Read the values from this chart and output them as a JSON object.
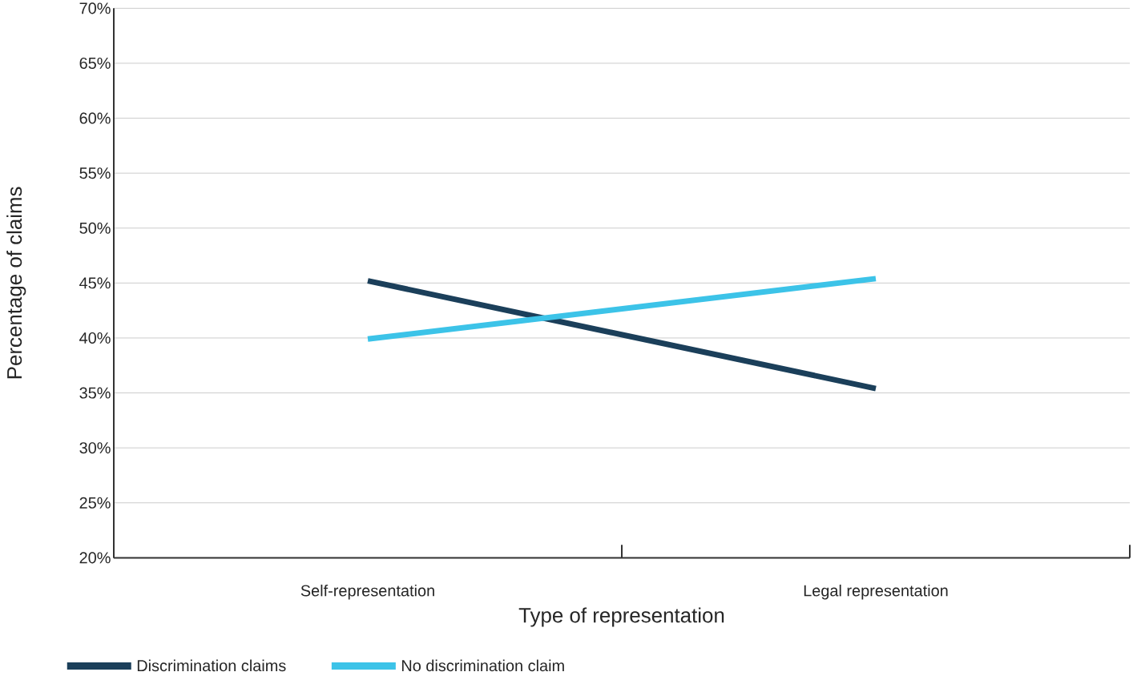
{
  "chart_data": {
    "type": "line",
    "xlabel": "Type of representation",
    "ylabel": "Percentage of claims",
    "categories": [
      "Self-representation",
      "Legal representation"
    ],
    "series": [
      {
        "name": "Discrimination claims",
        "color": "#1b3f5a",
        "values": [
          45.2,
          35.4
        ]
      },
      {
        "name": "No discrimination claim",
        "color": "#3cc3e8",
        "values": [
          39.9,
          45.4
        ]
      }
    ],
    "ylim": [
      20,
      70
    ],
    "yticks": [
      {
        "value": 20,
        "label": "20%"
      },
      {
        "value": 25,
        "label": "25%"
      },
      {
        "value": 30,
        "label": "30%"
      },
      {
        "value": 35,
        "label": "35%"
      },
      {
        "value": 40,
        "label": "40%"
      },
      {
        "value": 45,
        "label": "45%"
      },
      {
        "value": 50,
        "label": "50%"
      },
      {
        "value": 55,
        "label": "55%"
      },
      {
        "value": 60,
        "label": "60%"
      },
      {
        "value": 65,
        "label": "65%"
      },
      {
        "value": 70,
        "label": "70%"
      }
    ],
    "grid": "y",
    "legend": "bottom",
    "marker": "none",
    "line_style": "solid"
  }
}
